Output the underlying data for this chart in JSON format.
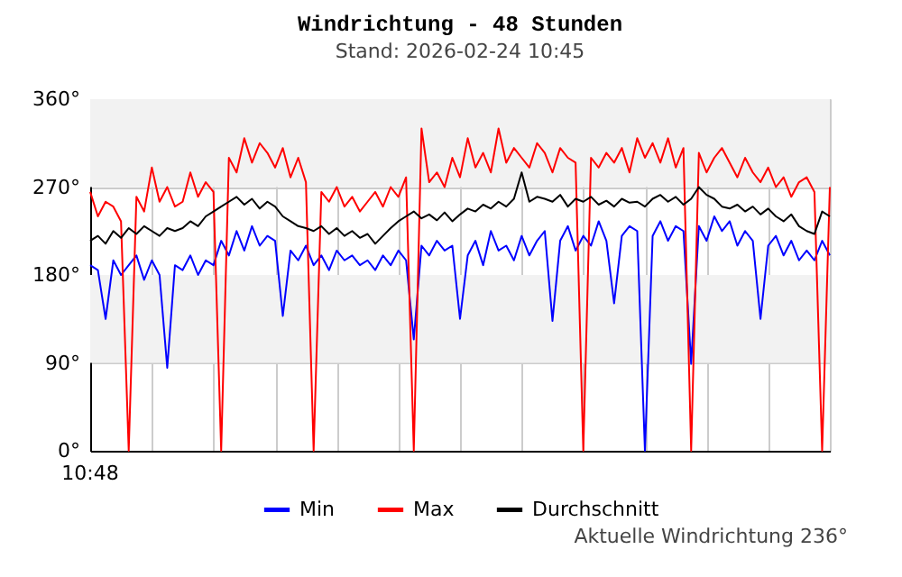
{
  "chart_data": {
    "type": "line",
    "title": "Windrichtung - 48 Stunden",
    "subtitle": "Stand: 2026-02-24 10:45",
    "categories": [
      null,
      null,
      null,
      null,
      null,
      null,
      null,
      null,
      null,
      null,
      null,
      null,
      null,
      null,
      null,
      null,
      null,
      null,
      null,
      null,
      null,
      null,
      null,
      null,
      null,
      null,
      null,
      null,
      null,
      null,
      null,
      null,
      null,
      null,
      null,
      null,
      null,
      null,
      null,
      null,
      null,
      null,
      null,
      null,
      null,
      null,
      null,
      null,
      null,
      null,
      null,
      null,
      null,
      null,
      null,
      null,
      null,
      null,
      null,
      null,
      null,
      null,
      null,
      null,
      null,
      null,
      null,
      null,
      null,
      null,
      null,
      null,
      null,
      null,
      null,
      null,
      null,
      null,
      null,
      null,
      null,
      null,
      null,
      null,
      null,
      null,
      null,
      null,
      null,
      null,
      null,
      null,
      null,
      null,
      null,
      null,
      null
    ],
    "series": [
      {
        "name": "Min",
        "color": "#0000ff",
        "values": [
          190,
          185,
          135,
          195,
          180,
          190,
          200,
          175,
          195,
          180,
          85,
          190,
          185,
          200,
          180,
          195,
          190,
          215,
          200,
          225,
          205,
          230,
          210,
          220,
          215,
          138,
          205,
          195,
          210,
          190,
          200,
          185,
          205,
          195,
          200,
          190,
          195,
          185,
          200,
          190,
          205,
          195,
          114,
          210,
          200,
          215,
          205,
          210,
          135,
          200,
          215,
          190,
          225,
          205,
          210,
          195,
          220,
          200,
          215,
          225,
          133,
          215,
          230,
          205,
          220,
          210,
          235,
          215,
          151,
          220,
          230,
          225,
          0,
          220,
          235,
          215,
          230,
          225,
          89,
          230,
          215,
          240,
          225,
          235,
          210,
          225,
          215,
          135,
          210,
          220,
          200,
          215,
          195,
          205,
          195,
          215,
          200
        ]
      },
      {
        "name": "Max",
        "color": "#ff0000",
        "values": [
          265,
          240,
          255,
          250,
          235,
          0,
          260,
          245,
          290,
          255,
          270,
          250,
          255,
          285,
          260,
          275,
          265,
          0,
          300,
          285,
          320,
          295,
          315,
          305,
          290,
          310,
          280,
          300,
          275,
          0,
          265,
          255,
          270,
          250,
          260,
          245,
          255,
          265,
          250,
          270,
          260,
          280,
          0,
          330,
          275,
          285,
          270,
          300,
          280,
          320,
          290,
          305,
          285,
          330,
          295,
          310,
          300,
          290,
          315,
          305,
          285,
          310,
          300,
          295,
          0,
          300,
          290,
          305,
          295,
          310,
          285,
          320,
          300,
          315,
          295,
          320,
          290,
          310,
          0,
          305,
          285,
          300,
          310,
          295,
          280,
          300,
          285,
          275,
          290,
          270,
          280,
          260,
          275,
          280,
          265,
          0,
          270
        ]
      },
      {
        "name": "Durchschnitt",
        "color": "#000000",
        "values": [
          215,
          220,
          212,
          225,
          218,
          228,
          222,
          230,
          225,
          220,
          228,
          225,
          228,
          235,
          230,
          240,
          245,
          250,
          255,
          260,
          252,
          258,
          248,
          255,
          250,
          240,
          235,
          230,
          228,
          225,
          230,
          222,
          228,
          220,
          225,
          218,
          222,
          212,
          220,
          228,
          235,
          240,
          245,
          238,
          242,
          236,
          244,
          235,
          242,
          248,
          245,
          252,
          248,
          255,
          250,
          258,
          285,
          255,
          260,
          258,
          255,
          262,
          250,
          258,
          255,
          260,
          252,
          256,
          250,
          258,
          254,
          255,
          250,
          258,
          262,
          255,
          260,
          252,
          258,
          270,
          262,
          258,
          250,
          248,
          252,
          245,
          250,
          242,
          248,
          240,
          235,
          242,
          230,
          225,
          222,
          245,
          240
        ]
      }
    ],
    "ylim": [
      0,
      360
    ],
    "yticks": [
      {
        "value": 0,
        "label": "0°"
      },
      {
        "value": 90,
        "label": "90°"
      },
      {
        "value": 180,
        "label": "180°"
      },
      {
        "value": 270,
        "label": "270°"
      },
      {
        "value": 360,
        "label": "360°"
      }
    ],
    "bands": [
      {
        "axis": "y",
        "from": 90,
        "to": 180,
        "color": "#f2f2f2"
      },
      {
        "axis": "y",
        "from": 270,
        "to": 360,
        "color": "#f2f2f2"
      }
    ],
    "grid": true,
    "legend": "bottom",
    "annotations": [
      "10:48",
      "Aktuelle Windrichtung 236°"
    ]
  }
}
